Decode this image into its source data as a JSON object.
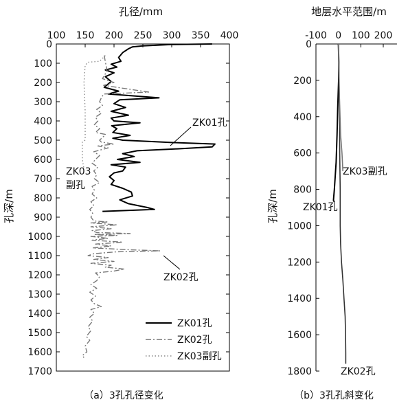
{
  "chart_data": [
    {
      "type": "line",
      "caption": "（a）3孔孔径变化",
      "xlabel": "孔径/mm",
      "ylabel": "孔深/m",
      "xlim": [
        100,
        400
      ],
      "ylim": [
        0,
        1700
      ],
      "y_inverted": true,
      "x_ticks": [
        "100",
        "150",
        "200",
        "250",
        "300",
        "350",
        "400"
      ],
      "y_ticks": [
        "0",
        "100",
        "200",
        "300",
        "400",
        "500",
        "600",
        "700",
        "800",
        "900",
        "1000",
        "1100",
        "1200",
        "1300",
        "1400",
        "1500",
        "1600",
        "1700"
      ],
      "legend": {
        "position": "bottom-right",
        "entries": [
          {
            "label": "ZK01孔",
            "style": "solid"
          },
          {
            "label": "ZK02孔",
            "style": "dashdot"
          },
          {
            "label": "ZK03副孔",
            "style": "dotted"
          }
        ]
      },
      "annotations": {
        "zk01": "ZK01孔",
        "zk02": "ZK02孔",
        "zk03_line1": "ZK03",
        "zk03_line2": "副孔"
      },
      "series": [
        {
          "name": "ZK01孔",
          "color": "#000000",
          "style": "solid",
          "points": [
            [
              370,
              0
            ],
            [
              300,
              3
            ],
            [
              250,
              10
            ],
            [
              232,
              15
            ],
            [
              225,
              25
            ],
            [
              215,
              45
            ],
            [
              208,
              70
            ],
            [
              212,
              90
            ],
            [
              195,
              105
            ],
            [
              205,
              120
            ],
            [
              185,
              135
            ],
            [
              200,
              150
            ],
            [
              185,
              170
            ],
            [
              195,
              195
            ],
            [
              183,
              225
            ],
            [
              208,
              245
            ],
            [
              190,
              260
            ],
            [
              235,
              270
            ],
            [
              278,
              280
            ],
            [
              210,
              290
            ],
            [
              200,
              310
            ],
            [
              220,
              330
            ],
            [
              195,
              350
            ],
            [
              225,
              370
            ],
            [
              195,
              385
            ],
            [
              200,
              400
            ],
            [
              245,
              410
            ],
            [
              196,
              425
            ],
            [
              205,
              440
            ],
            [
              198,
              460
            ],
            [
              228,
              475
            ],
            [
              198,
              490
            ],
            [
              215,
              500
            ],
            [
              300,
              512
            ],
            [
              375,
              520
            ],
            [
              370,
              535
            ],
            [
              310,
              545
            ],
            [
              240,
              555
            ],
            [
              215,
              570
            ],
            [
              235,
              585
            ],
            [
              206,
              600
            ],
            [
              245,
              615
            ],
            [
              195,
              628
            ],
            [
              220,
              640
            ],
            [
              215,
              660
            ],
            [
              200,
              670
            ],
            [
              192,
              690
            ],
            [
              200,
              710
            ],
            [
              195,
              730
            ],
            [
              215,
              750
            ],
            [
              230,
              770
            ],
            [
              232,
              790
            ],
            [
              210,
              810
            ],
            [
              225,
              830
            ],
            [
              258,
              850
            ],
            [
              270,
              860
            ],
            [
              180,
              870
            ]
          ]
        },
        {
          "name": "ZK02孔",
          "color": "#777777",
          "style": "dashdot",
          "points": [
            [
              183,
              60
            ],
            [
              188,
              140
            ],
            [
              180,
              180
            ],
            [
              200,
              200
            ],
            [
              182,
              215
            ],
            [
              260,
              250
            ],
            [
              182,
              260
            ],
            [
              178,
              280
            ],
            [
              175,
              300
            ],
            [
              180,
              320
            ],
            [
              170,
              340
            ],
            [
              178,
              360
            ],
            [
              168,
              380
            ],
            [
              172,
              400
            ],
            [
              166,
              420
            ],
            [
              175,
              440
            ],
            [
              168,
              460
            ],
            [
              185,
              470
            ],
            [
              182,
              480
            ],
            [
              175,
              500
            ],
            [
              178,
              510
            ],
            [
              200,
              520
            ],
            [
              172,
              530
            ],
            [
              190,
              540
            ],
            [
              165,
              560
            ],
            [
              175,
              580
            ],
            [
              168,
              600
            ],
            [
              162,
              620
            ],
            [
              172,
              640
            ],
            [
              165,
              660
            ],
            [
              170,
              680
            ],
            [
              166,
              700
            ],
            [
              175,
              720
            ],
            [
              162,
              740
            ],
            [
              166,
              760
            ],
            [
              162,
              780
            ],
            [
              170,
              800
            ],
            [
              160,
              820
            ],
            [
              165,
              840
            ],
            [
              158,
              860
            ],
            [
              163,
              880
            ],
            [
              160,
              900
            ],
            [
              165,
              920
            ],
            [
              190,
              925
            ],
            [
              160,
              930
            ],
            [
              205,
              940
            ],
            [
              160,
              950
            ],
            [
              195,
              960
            ],
            [
              162,
              970
            ],
            [
              170,
              980
            ],
            [
              228,
              985
            ],
            [
              165,
              990
            ],
            [
              205,
              995
            ],
            [
              160,
              1000
            ],
            [
              190,
              1010
            ],
            [
              162,
              1020
            ],
            [
              215,
              1030
            ],
            [
              168,
              1040
            ],
            [
              195,
              1050
            ],
            [
              163,
              1060
            ],
            [
              230,
              1070
            ],
            [
              280,
              1075
            ],
            [
              205,
              1080
            ],
            [
              165,
              1090
            ],
            [
              155,
              1100
            ],
            [
              190,
              1110
            ],
            [
              165,
              1120
            ],
            [
              200,
              1130
            ],
            [
              160,
              1140
            ],
            [
              195,
              1150
            ],
            [
              185,
              1160
            ],
            [
              218,
              1170
            ],
            [
              200,
              1180
            ],
            [
              168,
              1190
            ],
            [
              175,
              1210
            ],
            [
              170,
              1230
            ],
            [
              160,
              1250
            ],
            [
              170,
              1270
            ],
            [
              158,
              1290
            ],
            [
              168,
              1310
            ],
            [
              160,
              1330
            ],
            [
              166,
              1350
            ],
            [
              178,
              1365
            ],
            [
              160,
              1380
            ],
            [
              166,
              1400
            ],
            [
              158,
              1420
            ],
            [
              163,
              1440
            ],
            [
              155,
              1470
            ],
            [
              160,
              1490
            ],
            [
              152,
              1520
            ],
            [
              158,
              1540
            ],
            [
              150,
              1570
            ],
            [
              153,
              1600
            ],
            [
              145,
              1620
            ],
            [
              148,
              1630
            ]
          ]
        },
        {
          "name": "ZK03副孔",
          "color": "#888888",
          "style": "dotted",
          "points": [
            [
              185,
              60
            ],
            [
              175,
              90
            ],
            [
              155,
              95
            ],
            [
              150,
              110
            ],
            [
              148,
              200
            ],
            [
              150,
              350
            ],
            [
              150,
              500
            ],
            [
              145,
              510
            ],
            [
              145,
              600
            ],
            [
              148,
              650
            ]
          ]
        }
      ]
    },
    {
      "type": "line",
      "caption": "（b）3孔孔斜变化",
      "xlabel": "地层水平范围/m",
      "ylabel": "孔深/m",
      "xlim": [
        -100,
        200
      ],
      "ylim": [
        0,
        1800
      ],
      "y_inverted": true,
      "x_ticks": [
        "-100",
        "0",
        "100",
        "200"
      ],
      "y_ticks": [
        "0",
        "200",
        "400",
        "600",
        "800",
        "1000",
        "1200",
        "1400",
        "1600",
        "1800"
      ],
      "annotations": {
        "zk03": "ZK03副孔",
        "zk01": "ZK01孔",
        "zk02": "ZK02孔"
      },
      "series": [
        {
          "name": "ZK01孔",
          "color": "#000000",
          "style": "solid",
          "points": [
            [
              0,
              0
            ],
            [
              2,
              100
            ],
            [
              1,
              200
            ],
            [
              -3,
              350
            ],
            [
              -6,
              500
            ],
            [
              -10,
              650
            ],
            [
              -18,
              800
            ],
            [
              -22,
              860
            ],
            [
              -18,
              870
            ]
          ]
        },
        {
          "name": "ZK02孔",
          "color": "#333333",
          "style": "solid",
          "points": [
            [
              0,
              0
            ],
            [
              3,
              200
            ],
            [
              5,
              400
            ],
            [
              6,
              600
            ],
            [
              8,
              800
            ],
            [
              8,
              1000
            ],
            [
              10,
              1100
            ],
            [
              14,
              1200
            ],
            [
              20,
              1300
            ],
            [
              25,
              1400
            ],
            [
              30,
              1500
            ],
            [
              32,
              1600
            ],
            [
              33,
              1700
            ],
            [
              33,
              1760
            ]
          ]
        },
        {
          "name": "ZK03副孔",
          "color": "#777777",
          "style": "solid",
          "points": [
            [
              0,
              0
            ],
            [
              2,
              100
            ],
            [
              5,
              300
            ],
            [
              10,
              500
            ],
            [
              16,
              600
            ],
            [
              20,
              700
            ]
          ]
        }
      ]
    }
  ]
}
